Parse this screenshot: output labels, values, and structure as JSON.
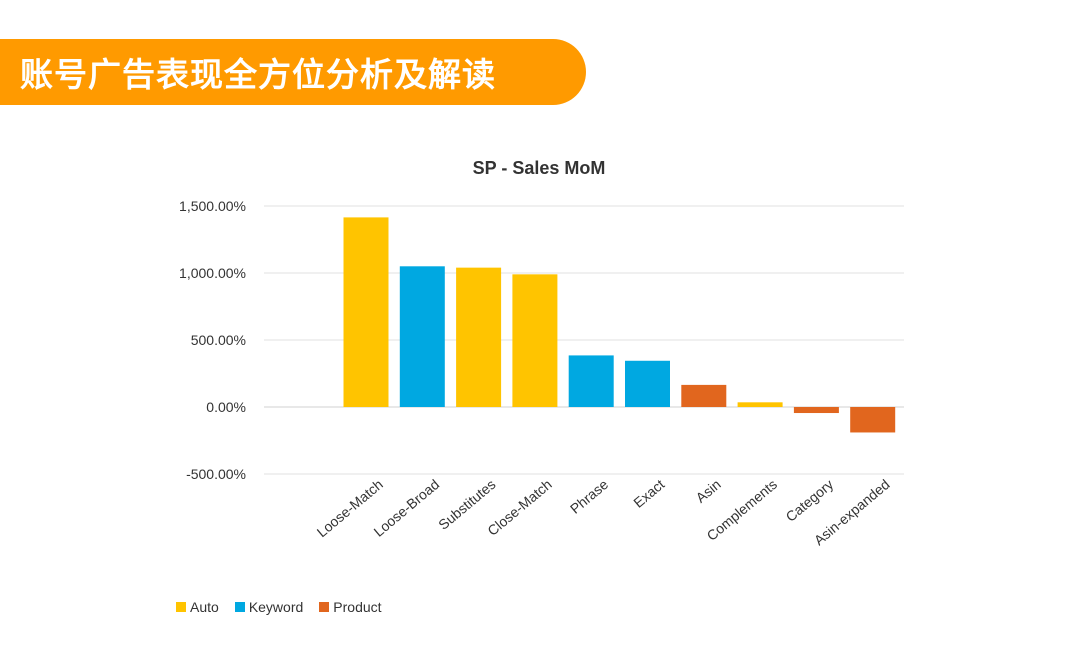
{
  "header": {
    "title": "账号广告表现全方位分析及解读",
    "color": "#ff9a00"
  },
  "chart_data": {
    "type": "bar",
    "title": "SP - Sales MoM",
    "xlabel": "",
    "ylabel": "",
    "ylim": [
      -500,
      1500
    ],
    "yticks": [
      1500,
      1000,
      500,
      0,
      -500
    ],
    "ytick_labels": [
      "1,500.00%",
      "1,000.00%",
      "500.00%",
      "0.00%",
      "-500.00%"
    ],
    "categories": [
      "Loose-Match",
      "Loose-Broad",
      "Substitutes",
      "Close-Match",
      "Phrase",
      "Exact",
      "Asin",
      "Complements",
      "Category",
      "Asin-expanded"
    ],
    "values": [
      1415,
      1050,
      1040,
      990,
      385,
      345,
      165,
      35,
      -45,
      -190
    ],
    "groups": [
      "Auto",
      "Keyword",
      "Auto",
      "Auto",
      "Keyword",
      "Keyword",
      "Product",
      "Auto",
      "Product",
      "Product"
    ],
    "legend": [
      {
        "label": "Auto",
        "color": "#ffc400"
      },
      {
        "label": "Keyword",
        "color": "#00a8e1"
      },
      {
        "label": "Product",
        "color": "#e1661e"
      }
    ]
  }
}
